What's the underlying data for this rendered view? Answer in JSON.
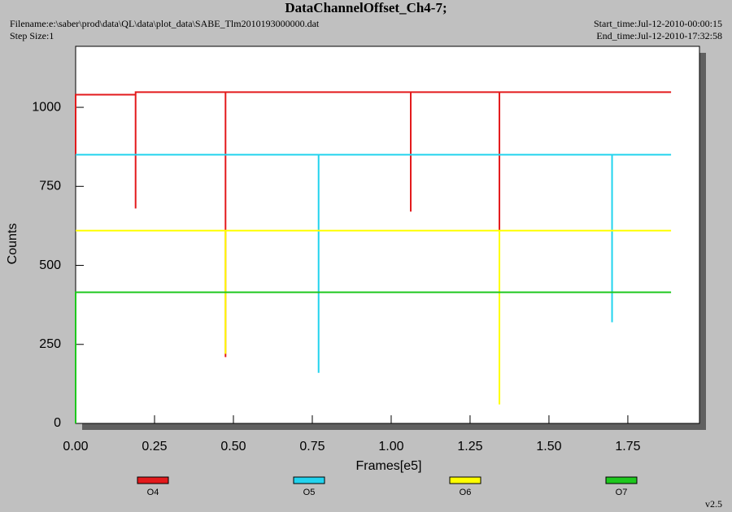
{
  "chart_data": {
    "type": "line",
    "title": "DataChannelOffset_Ch4-7;",
    "filename": "Filename:e:\\saber\\prod\\data\\QL\\data\\plot_data\\SABE_Tlm2010193000000.dat",
    "step_size": "Step Size:1",
    "start_time": "Start_time:Jul-12-2010-00:00:15",
    "end_time": "End_time:Jul-12-2010-17:32:58",
    "version": "v2.5",
    "xlabel": "Frames[e5]",
    "ylabel": "Counts",
    "xlim": [
      0,
      1.977
    ],
    "ylim": [
      0,
      1193
    ],
    "xticks": [
      {
        "value": 0,
        "label": "0.00"
      },
      {
        "value": 0.25,
        "label": "0.25"
      },
      {
        "value": 0.5,
        "label": "0.50"
      },
      {
        "value": 0.75,
        "label": "0.75"
      },
      {
        "value": 1,
        "label": "1.00"
      },
      {
        "value": 1.25,
        "label": "1.25"
      },
      {
        "value": 1.5,
        "label": "1.50"
      },
      {
        "value": 1.75,
        "label": "1.75"
      }
    ],
    "yticks": [
      0,
      250,
      500,
      750,
      1000
    ],
    "series": [
      {
        "name": "O4",
        "color": "#e31a1c",
        "x": [
          0,
          0,
          0.19,
          0.19,
          0.19,
          0.475,
          0.475,
          0.475,
          1.062,
          1.062,
          1.062,
          1.343,
          1.343,
          1.343,
          1.887
        ],
        "values": [
          850,
          1040,
          1040,
          680,
          1048,
          1048,
          210,
          1048,
          1048,
          670,
          1048,
          1048,
          610,
          1048,
          1048
        ]
      },
      {
        "name": "O5",
        "color": "#22d3ee",
        "x": [
          0,
          0.77,
          0.77,
          0.77,
          1.7,
          1.7,
          1.7,
          1.887
        ],
        "values": [
          850,
          850,
          160,
          850,
          850,
          320,
          850,
          850
        ]
      },
      {
        "name": "O6",
        "color": "#ffff00",
        "x": [
          0,
          0.475,
          0.475,
          0.475,
          1.343,
          1.343,
          1.343,
          1.887
        ],
        "values": [
          610,
          610,
          220,
          610,
          610,
          60,
          610,
          610
        ]
      },
      {
        "name": "O7",
        "color": "#1ec81e",
        "x": [
          0,
          0,
          1.887
        ],
        "values": [
          0,
          415,
          415
        ]
      }
    ]
  }
}
